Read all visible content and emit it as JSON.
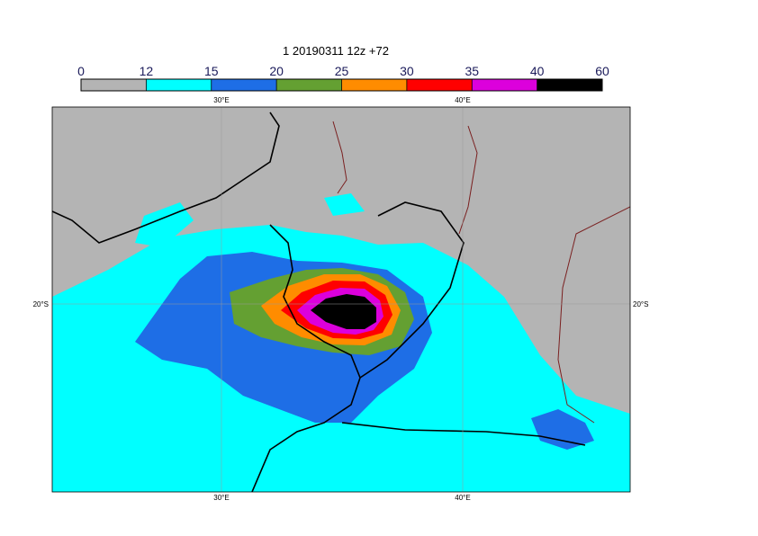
{
  "title": "1 20190311 12z +72",
  "colorbar": {
    "ticks": [
      0,
      12,
      15,
      20,
      25,
      30,
      35,
      40,
      60
    ],
    "colors": [
      "#b4b4b4",
      "#00ffff",
      "#1e6ee6",
      "#64a032",
      "#ff8c00",
      "#ff0000",
      "#dc00dc",
      "#000000"
    ]
  },
  "map": {
    "lon_labels": [
      "30°E",
      "40°E"
    ],
    "lat_labels": [
      "20°S"
    ]
  }
}
